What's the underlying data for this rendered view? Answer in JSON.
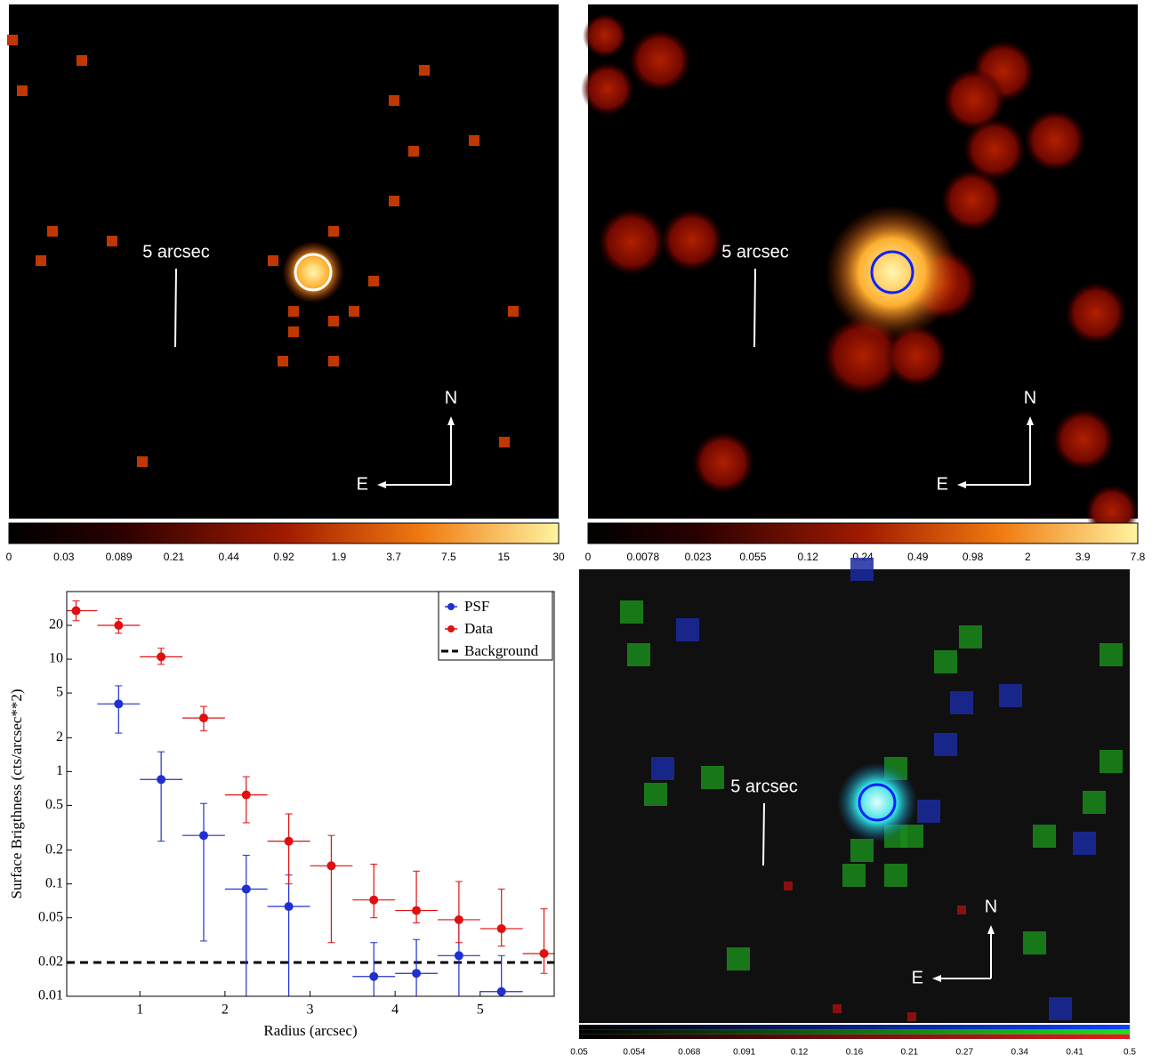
{
  "images": [
    {
      "scale_label": "5 arcsec",
      "north": "N",
      "east": "E",
      "colorbar_ticks": [
        0,
        0.03,
        0.089,
        0.21,
        0.44,
        0.92,
        1.9,
        3.7,
        7.5,
        15,
        30
      ]
    },
    {
      "scale_label": "5 arcsec",
      "north": "N",
      "east": "E",
      "colorbar_ticks": [
        0,
        0.0078,
        0.023,
        0.055,
        0.12,
        0.24,
        0.49,
        0.98,
        2,
        3.9,
        7.8
      ]
    },
    {
      "scale_label": "5 arcsec",
      "north": "N",
      "east": "E",
      "colorbar_ticks": [
        0.05,
        0.054,
        0.068,
        0.091,
        0.12,
        0.16,
        0.21,
        0.27,
        0.34,
        0.41,
        0.5
      ]
    }
  ],
  "chart_data": {
    "type": "scatter",
    "xlabel": "Radius (arcsec)",
    "ylabel": "Surface Brigthness (cts/arcsec**2)",
    "log_y": true,
    "xlim": [
      0.14,
      5.87
    ],
    "ylim": [
      0.01,
      40
    ],
    "xticks": [
      1,
      2,
      3,
      4,
      5
    ],
    "yticks": [
      0.01,
      0.02,
      0.05,
      0.1,
      0.2,
      0.5,
      1,
      2,
      5,
      10,
      20
    ],
    "legend": "upper right",
    "series": [
      {
        "name": "PSF",
        "color": "#2030d0",
        "x": [
          0.75,
          1.25,
          1.75,
          2.25,
          2.75,
          3.75,
          4.25,
          4.75,
          5.25
        ],
        "values": [
          4.0,
          0.85,
          0.27,
          0.09,
          0.063,
          0.015,
          0.016,
          0.023,
          0.011
        ],
        "xerr": [
          0.25,
          0.25,
          0.25,
          0.25,
          0.25,
          0.25,
          0.25,
          0.25,
          0.25
        ],
        "y_low": [
          2.2,
          0.24,
          0.031,
          0.01,
          0.01,
          0.01,
          0.01,
          0.01,
          0.01
        ],
        "y_high": [
          5.8,
          1.5,
          0.52,
          0.18,
          0.12,
          0.03,
          0.032,
          0.048,
          0.023
        ]
      },
      {
        "name": "Data",
        "color": "#e01010",
        "x": [
          0.25,
          0.75,
          1.25,
          1.75,
          2.25,
          2.75,
          3.25,
          3.75,
          4.25,
          4.75,
          5.25,
          5.75
        ],
        "values": [
          27,
          20,
          10.5,
          3.0,
          0.62,
          0.24,
          0.145,
          0.072,
          0.058,
          0.048,
          0.04,
          0.024
        ],
        "xerr": [
          0.25,
          0.25,
          0.25,
          0.25,
          0.25,
          0.25,
          0.25,
          0.25,
          0.25,
          0.25,
          0.25,
          0.25
        ],
        "y_low": [
          22,
          17,
          9,
          2.3,
          0.35,
          0.1,
          0.03,
          0.05,
          0.045,
          0.03,
          0.028,
          0.016
        ],
        "y_high": [
          33,
          23,
          12.5,
          3.8,
          0.9,
          0.42,
          0.27,
          0.15,
          0.13,
          0.105,
          0.09,
          0.06
        ]
      }
    ],
    "background": {
      "name": "Background",
      "value": 0.02,
      "color": "#000000"
    }
  }
}
